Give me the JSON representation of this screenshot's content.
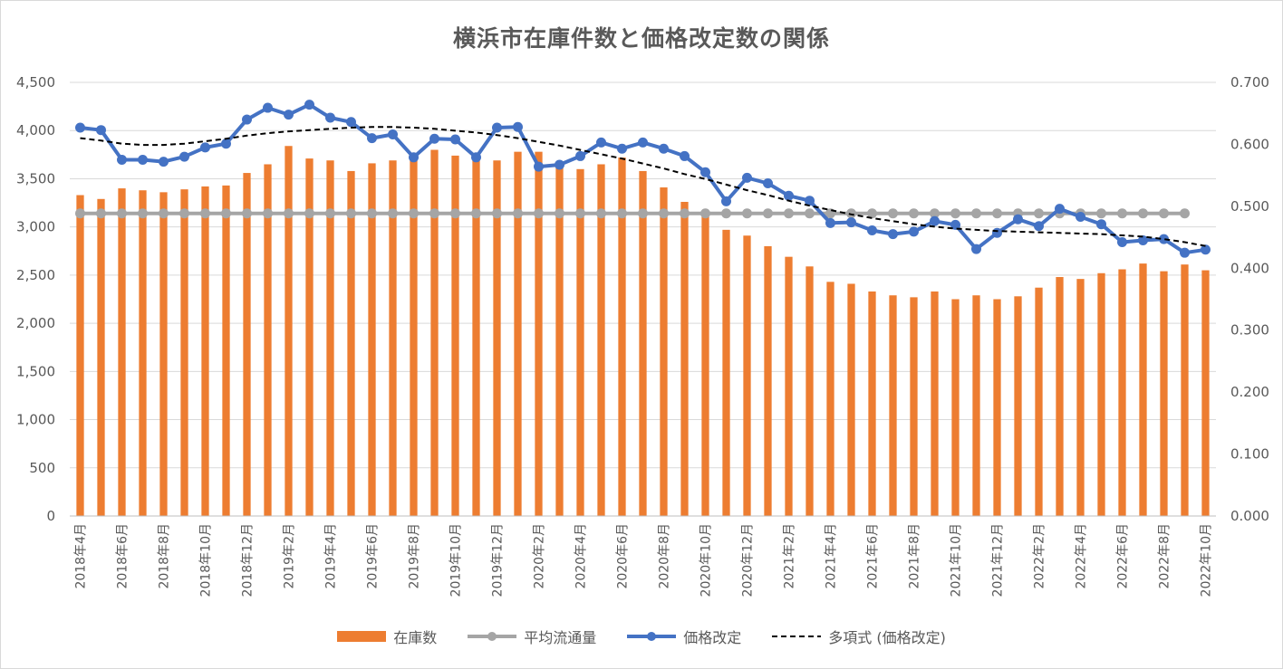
{
  "chart_data": {
    "type": "bar",
    "title": "横浜市在庫件数と価格改定数の関係",
    "left_axis": {
      "ylim": [
        0,
        4500
      ],
      "ticks": [
        "0",
        "500",
        "1,000",
        "1,500",
        "2,000",
        "2,500",
        "3,000",
        "3,500",
        "4,000",
        "4,500"
      ]
    },
    "right_axis": {
      "ylim": [
        0,
        0.7
      ],
      "ticks": [
        "0.000",
        "0.100",
        "0.200",
        "0.300",
        "0.400",
        "0.500",
        "0.600",
        "0.700"
      ]
    },
    "grid": true,
    "legend_position": "bottom",
    "categories": [
      "2018年4月",
      "2018年5月",
      "2018年6月",
      "2018年7月",
      "2018年8月",
      "2018年9月",
      "2018年10月",
      "2018年11月",
      "2018年12月",
      "2019年1月",
      "2019年2月",
      "2019年3月",
      "2019年4月",
      "2019年5月",
      "2019年6月",
      "2019年7月",
      "2019年8月",
      "2019年9月",
      "2019年10月",
      "2019年11月",
      "2019年12月",
      "2020年1月",
      "2020年2月",
      "2020年3月",
      "2020年4月",
      "2020年5月",
      "2020年6月",
      "2020年7月",
      "2020年8月",
      "2020年9月",
      "2020年10月",
      "2020年11月",
      "2020年12月",
      "2021年1月",
      "2021年2月",
      "2021年3月",
      "2021年4月",
      "2021年5月",
      "2021年6月",
      "2021年7月",
      "2021年8月",
      "2021年9月",
      "2021年10月",
      "2021年11月",
      "2021年12月",
      "2022年1月",
      "2022年2月",
      "2022年3月",
      "2022年4月",
      "2022年5月",
      "2022年6月",
      "2022年7月",
      "2022年8月",
      "2022年9月",
      "2022年10月"
    ],
    "x_tick_labels": [
      "2018年4月",
      "",
      "2018年6月",
      "",
      "2018年8月",
      "",
      "2018年10月",
      "",
      "2018年12月",
      "",
      "2019年2月",
      "",
      "2019年4月",
      "",
      "2019年6月",
      "",
      "2019年8月",
      "",
      "2019年10月",
      "",
      "2019年12月",
      "",
      "2020年2月",
      "",
      "2020年4月",
      "",
      "2020年6月",
      "",
      "2020年8月",
      "",
      "2020年10月",
      "",
      "2020年12月",
      "",
      "2021年2月",
      "",
      "2021年4月",
      "",
      "2021年6月",
      "",
      "2021年8月",
      "",
      "2021年10月",
      "",
      "2021年12月",
      "",
      "2022年2月",
      "",
      "2022年4月",
      "",
      "2022年6月",
      "",
      "2022年8月",
      "",
      "2022年10月"
    ],
    "series": [
      {
        "name": "在庫数",
        "type": "bar",
        "axis": "left",
        "color": "#ED7D31",
        "values": [
          3330,
          3290,
          3400,
          3380,
          3360,
          3390,
          3420,
          3430,
          3560,
          3650,
          3840,
          3710,
          3690,
          3580,
          3660,
          3690,
          3710,
          3800,
          3740,
          3720,
          3690,
          3780,
          3780,
          3640,
          3600,
          3650,
          3720,
          3580,
          3410,
          3260,
          3110,
          2970,
          2910,
          2800,
          2690,
          2590,
          2430,
          2410,
          2330,
          2290,
          2270,
          2330,
          2250,
          2290,
          2250,
          2280,
          2370,
          2480,
          2460,
          2520,
          2560,
          2620,
          2540,
          2610,
          2550
        ]
      },
      {
        "name": "平均流通量",
        "type": "line",
        "axis": "left",
        "color": "#A5A5A5",
        "marker": "circle",
        "values": [
          3140,
          3140,
          3140,
          3140,
          3140,
          3140,
          3140,
          3140,
          3140,
          3140,
          3140,
          3140,
          3140,
          3140,
          3140,
          3140,
          3140,
          3140,
          3140,
          3140,
          3140,
          3140,
          3140,
          3140,
          3140,
          3140,
          3140,
          3140,
          3140,
          3140,
          3140,
          3140,
          3140,
          3140,
          3140,
          3140,
          3140,
          3140,
          3140,
          3140,
          3140,
          3140,
          3140,
          3140,
          3140,
          3140,
          3140,
          3140,
          3140,
          3140,
          3140,
          3140,
          3140,
          3140,
          null
        ]
      },
      {
        "name": "価格改定",
        "type": "line",
        "axis": "right",
        "color": "#4472C4",
        "marker": "circle",
        "values": [
          0.627,
          0.623,
          0.575,
          0.575,
          0.572,
          0.58,
          0.595,
          0.601,
          0.64,
          0.659,
          0.648,
          0.664,
          0.643,
          0.636,
          0.61,
          0.616,
          0.579,
          0.609,
          0.608,
          0.579,
          0.627,
          0.628,
          0.564,
          0.567,
          0.581,
          0.603,
          0.593,
          0.603,
          0.593,
          0.581,
          0.555,
          0.508,
          0.546,
          0.537,
          0.517,
          0.509,
          0.473,
          0.474,
          0.461,
          0.455,
          0.459,
          0.476,
          0.47,
          0.431,
          0.457,
          0.479,
          0.468,
          0.496,
          0.483,
          0.471,
          0.442,
          0.445,
          0.447,
          0.425,
          0.43
        ]
      },
      {
        "name": "多項式 (価格改定)",
        "type": "trendline",
        "axis": "right",
        "color": "#000000",
        "dash": "dashed",
        "values": [
          0.61,
          0.606,
          0.601,
          0.599,
          0.599,
          0.601,
          0.605,
          0.609,
          0.614,
          0.618,
          0.621,
          0.623,
          0.625,
          0.627,
          0.628,
          0.628,
          0.627,
          0.625,
          0.622,
          0.619,
          0.615,
          0.61,
          0.604,
          0.598,
          0.591,
          0.584,
          0.577,
          0.569,
          0.561,
          0.552,
          0.544,
          0.535,
          0.526,
          0.518,
          0.509,
          0.501,
          0.494,
          0.487,
          0.481,
          0.476,
          0.471,
          0.467,
          0.464,
          0.462,
          0.46,
          0.459,
          0.458,
          0.457,
          0.456,
          0.455,
          0.453,
          0.451,
          0.447,
          0.442,
          0.436
        ]
      }
    ]
  }
}
